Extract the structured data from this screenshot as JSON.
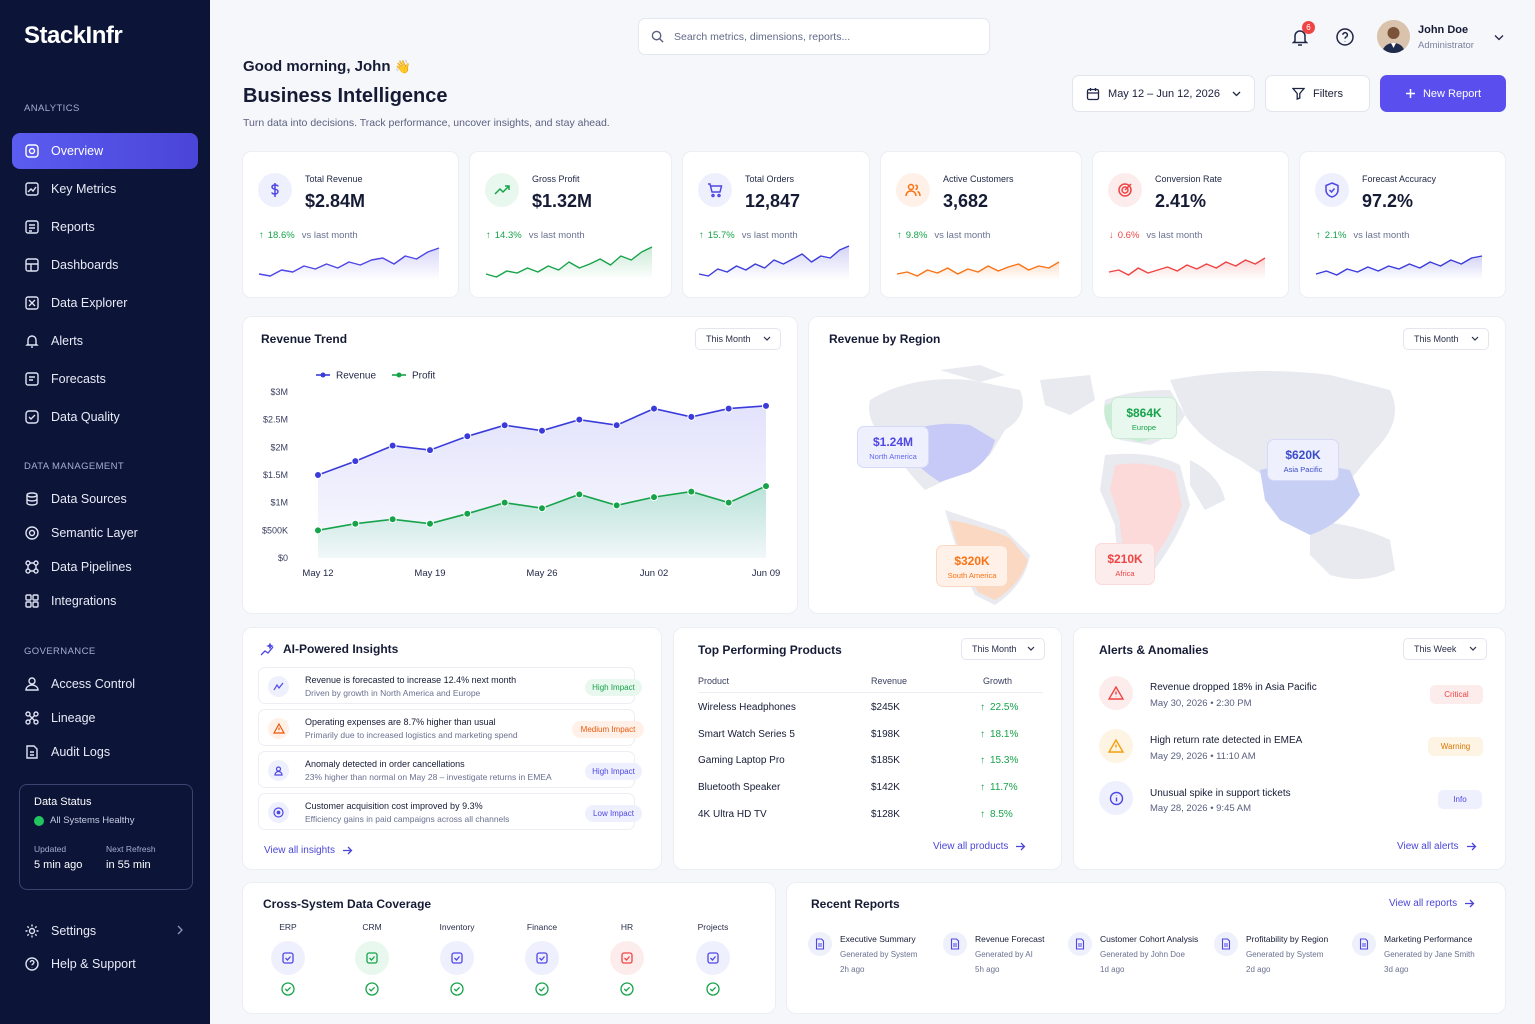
{
  "app": {
    "name": "StackInfr"
  },
  "sidebar": {
    "sections": [
      {
        "label": "ANALYTICS",
        "items": [
          {
            "label": "Overview",
            "icon": "overview-icon"
          },
          {
            "label": "Key Metrics",
            "icon": "chart-icon"
          },
          {
            "label": "Reports",
            "icon": "report-icon"
          },
          {
            "label": "Dashboards",
            "icon": "dashboard-icon"
          },
          {
            "label": "Data Explorer",
            "icon": "explorer-icon"
          },
          {
            "label": "Alerts",
            "icon": "bell-icon"
          },
          {
            "label": "Forecasts",
            "icon": "forecast-icon"
          },
          {
            "label": "Data Quality",
            "icon": "quality-icon"
          }
        ]
      },
      {
        "label": "DATA MANAGEMENT",
        "items": [
          {
            "label": "Data Sources",
            "icon": "database-icon"
          },
          {
            "label": "Semantic Layer",
            "icon": "layers-icon"
          },
          {
            "label": "Data Pipelines",
            "icon": "pipeline-icon"
          },
          {
            "label": "Integrations",
            "icon": "integration-icon"
          }
        ]
      },
      {
        "label": "GOVERNANCE",
        "items": [
          {
            "label": "Access Control",
            "icon": "users-icon"
          },
          {
            "label": "Lineage",
            "icon": "lineage-icon"
          },
          {
            "label": "Audit Logs",
            "icon": "audit-icon"
          }
        ]
      }
    ],
    "status": {
      "title": "Data Status",
      "health": "All Systems Healthy",
      "updated_label": "Updated",
      "updated_value": "5 min ago",
      "refresh_label": "Next Refresh",
      "refresh_value": "in 55 min"
    },
    "footer": [
      {
        "label": "Settings",
        "icon": "gear-icon"
      },
      {
        "label": "Help & Support",
        "icon": "help-icon"
      }
    ]
  },
  "topbar": {
    "search_placeholder": "Search metrics, dimensions, reports...",
    "notifications": "6",
    "user_name": "John Doe",
    "user_role": "Administrator"
  },
  "header": {
    "greeting": "Good morning, John",
    "wave": "👋",
    "title": "Business Intelligence",
    "subtitle": "Turn data into decisions. Track performance, uncover insights, and stay ahead.",
    "date_range": "May 12 – Jun 12, 2026",
    "filters": "Filters",
    "new_report": "New Report"
  },
  "kpis": [
    {
      "label": "Total Revenue",
      "value": "$2.84M",
      "change": "18.6%",
      "direction": "up",
      "vs": "vs last month",
      "color": "#4f46e5",
      "icon": "dollar-icon"
    },
    {
      "label": "Gross Profit",
      "value": "$1.32M",
      "change": "14.3%",
      "direction": "up",
      "vs": "vs last month",
      "color": "#16a34a",
      "icon": "trend-icon"
    },
    {
      "label": "Total Orders",
      "value": "12,847",
      "change": "15.7%",
      "direction": "up",
      "vs": "vs last month",
      "color": "#4f46e5",
      "icon": "cart-icon"
    },
    {
      "label": "Active Customers",
      "value": "3,682",
      "change": "9.8%",
      "direction": "up",
      "vs": "vs last month",
      "color": "#f97316",
      "icon": "customers-icon"
    },
    {
      "label": "Conversion Rate",
      "value": "2.41%",
      "change": "0.6%",
      "direction": "down",
      "vs": "vs last month",
      "color": "#ef4444",
      "icon": "target-icon"
    },
    {
      "label": "Forecast Accuracy",
      "value": "97.2%",
      "change": "2.1%",
      "direction": "up",
      "vs": "vs last month",
      "color": "#4f46e5",
      "icon": "shield-icon"
    }
  ],
  "revenue_trend": {
    "title": "Revenue Trend",
    "period": "This Month"
  },
  "chart_data": {
    "type": "line",
    "x": [
      "May 12",
      "May 14",
      "May 16",
      "May 19",
      "May 21",
      "May 23",
      "May 26",
      "May 28",
      "May 30",
      "Jun 02",
      "Jun 04",
      "Jun 07",
      "Jun 09"
    ],
    "x_tick_labels": [
      "May 12",
      "May 19",
      "May 26",
      "Jun 02",
      "Jun 09"
    ],
    "series": [
      {
        "name": "Revenue",
        "color": "#3b3bdb",
        "values": [
          1.5,
          1.75,
          2.03,
          1.95,
          2.2,
          2.4,
          2.3,
          2.5,
          2.4,
          2.7,
          2.55,
          2.7,
          2.75
        ]
      },
      {
        "name": "Profit",
        "color": "#16a34a",
        "values": [
          0.5,
          0.62,
          0.7,
          0.62,
          0.8,
          1.0,
          0.9,
          1.15,
          0.95,
          1.1,
          1.2,
          1.0,
          1.3
        ]
      }
    ],
    "y_unit": "$M",
    "y_tick_labels": [
      "$0",
      "$500K",
      "$1M",
      "$1.5M",
      "$2M",
      "$2.5M",
      "$3M"
    ],
    "ylim": [
      0,
      3
    ],
    "legend": "top-left",
    "grid": false
  },
  "revenue_region": {
    "title": "Revenue by Region",
    "period": "This Month",
    "regions": [
      {
        "name": "North America",
        "value": "$1.24M",
        "color": "#6366f1"
      },
      {
        "name": "Europe",
        "value": "$864K",
        "color": "#16a34a"
      },
      {
        "name": "Asia Pacific",
        "value": "$620K",
        "color": "#3b4cca"
      },
      {
        "name": "South America",
        "value": "$320K",
        "color": "#f97316"
      },
      {
        "name": "Africa",
        "value": "$210K",
        "color": "#ef4444"
      }
    ]
  },
  "insights": {
    "title": "AI-Powered Insights",
    "link": "View all insights",
    "items": [
      {
        "title": "Revenue is forecasted to increase 12.4% next month",
        "desc": "Driven by growth in North America and Europe",
        "tag": "High Impact",
        "tag_color": "#16a34a",
        "icon": "sparkline-icon"
      },
      {
        "title": "Operating expenses are 8.7% higher than usual",
        "desc": "Primarily due to increased logistics and marketing spend",
        "tag": "Medium Impact",
        "tag_color": "#ea580c",
        "icon": "warning-icon"
      },
      {
        "title": "Anomaly detected in order cancellations",
        "desc": "23% higher than normal on May 28 – investigate returns in EMEA",
        "tag": "High Impact",
        "tag_color": "#4f46e5",
        "icon": "anomaly-icon"
      },
      {
        "title": "Customer acquisition cost improved by 9.3%",
        "desc": "Efficiency gains in paid campaigns across all channels",
        "tag": "Low Impact",
        "tag_color": "#4f46e5",
        "icon": "info-icon"
      }
    ]
  },
  "products": {
    "title": "Top Performing Products",
    "period": "This Month",
    "headers": [
      "Product",
      "Revenue",
      "Growth"
    ],
    "rows": [
      {
        "name": "Wireless Headphones",
        "revenue": "$245K",
        "growth": "22.5%"
      },
      {
        "name": "Smart Watch Series 5",
        "revenue": "$198K",
        "growth": "18.1%"
      },
      {
        "name": "Gaming Laptop Pro",
        "revenue": "$185K",
        "growth": "15.3%"
      },
      {
        "name": "Bluetooth Speaker",
        "revenue": "$142K",
        "growth": "11.7%"
      },
      {
        "name": "4K Ultra HD TV",
        "revenue": "$128K",
        "growth": "8.5%"
      }
    ],
    "link": "View all products"
  },
  "alerts": {
    "title": "Alerts & Anomalies",
    "period": "This Week",
    "items": [
      {
        "title": "Revenue dropped 18% in Asia Pacific",
        "date": "May 30, 2026 • 2:30 PM",
        "tag": "Critical",
        "color": "#ef4444"
      },
      {
        "title": "High return rate detected in EMEA",
        "date": "May 29, 2026 • 11:10 AM",
        "tag": "Warning",
        "color": "#f59e0b"
      },
      {
        "title": "Unusual spike in support tickets",
        "date": "May 28, 2026 • 9:45 AM",
        "tag": "Info",
        "color": "#4f46e5"
      }
    ],
    "link": "View all alerts"
  },
  "coverage": {
    "title": "Cross-System Data Coverage",
    "systems": [
      {
        "name": "ERP",
        "color": "#4f46e5"
      },
      {
        "name": "CRM",
        "color": "#16a34a"
      },
      {
        "name": "Inventory",
        "color": "#4f46e5"
      },
      {
        "name": "Finance",
        "color": "#4f46e5"
      },
      {
        "name": "HR",
        "color": "#ef4444"
      },
      {
        "name": "Projects",
        "color": "#4f46e5"
      }
    ]
  },
  "recent_reports": {
    "title": "Recent Reports",
    "link": "View all reports",
    "items": [
      {
        "title": "Executive Summary",
        "by": "Generated by System",
        "time": "2h ago"
      },
      {
        "title": "Revenue Forecast",
        "by": "Generated by AI",
        "time": "5h ago"
      },
      {
        "title": "Customer Cohort Analysis",
        "by": "Generated by John Doe",
        "time": "1d ago"
      },
      {
        "title": "Profitability by Region",
        "by": "Generated by System",
        "time": "2d ago"
      },
      {
        "title": "Marketing Performance",
        "by": "Generated by Jane Smith",
        "time": "3d ago"
      }
    ]
  }
}
